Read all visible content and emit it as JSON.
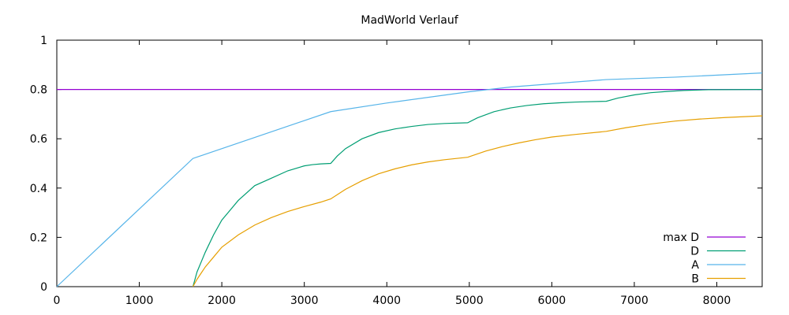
{
  "chart_data": {
    "type": "line",
    "title": "MadWorld Verlauf",
    "xlabel": "",
    "ylabel": "",
    "xlim": [
      0,
      8550
    ],
    "ylim": [
      0,
      1
    ],
    "x_ticks": [
      0,
      1000,
      2000,
      3000,
      4000,
      5000,
      6000,
      7000,
      8000
    ],
    "y_ticks": [
      0,
      0.2,
      0.4,
      0.6,
      0.8,
      1
    ],
    "y_tick_labels": [
      "0",
      "0.2",
      "0.4",
      "0.6",
      "0.8",
      "1"
    ],
    "grid": false,
    "legend_position": "bottom-right",
    "series": [
      {
        "name": "max D",
        "color": "#9400d3",
        "x": [
          0,
          8550
        ],
        "y": [
          0.8,
          0.8
        ]
      },
      {
        "name": "D",
        "color": "#009e73",
        "x": [
          1650,
          1700,
          1750,
          1800,
          1900,
          2000,
          2100,
          2200,
          2400,
          2600,
          2800,
          3000,
          3100,
          3200,
          3320,
          3400,
          3500,
          3700,
          3900,
          4100,
          4300,
          4500,
          4700,
          4980,
          5100,
          5300,
          5500,
          5700,
          5900,
          6100,
          6300,
          6660,
          6800,
          7000,
          7200,
          7400,
          7600,
          7900,
          8550
        ],
        "y": [
          0.0,
          0.06,
          0.1,
          0.14,
          0.21,
          0.27,
          0.31,
          0.35,
          0.41,
          0.44,
          0.47,
          0.49,
          0.495,
          0.498,
          0.5,
          0.53,
          0.56,
          0.6,
          0.625,
          0.64,
          0.65,
          0.658,
          0.662,
          0.665,
          0.685,
          0.71,
          0.725,
          0.735,
          0.742,
          0.746,
          0.749,
          0.752,
          0.765,
          0.778,
          0.787,
          0.792,
          0.796,
          0.799,
          0.8
        ]
      },
      {
        "name": "A",
        "color": "#56b4e9",
        "x": [
          0,
          1650,
          3320,
          4000,
          4980,
          5500,
          6660,
          7500,
          8550
        ],
        "y": [
          0.0,
          0.52,
          0.71,
          0.745,
          0.79,
          0.81,
          0.84,
          0.85,
          0.867
        ]
      },
      {
        "name": "B",
        "color": "#e69f00",
        "x": [
          1650,
          1700,
          1800,
          1900,
          2000,
          2200,
          2400,
          2600,
          2800,
          3000,
          3200,
          3320,
          3500,
          3700,
          3900,
          4100,
          4300,
          4500,
          4700,
          4980,
          5200,
          5400,
          5600,
          5800,
          6000,
          6300,
          6660,
          6900,
          7200,
          7500,
          7800,
          8100,
          8550
        ],
        "y": [
          0.0,
          0.03,
          0.08,
          0.12,
          0.16,
          0.21,
          0.25,
          0.28,
          0.305,
          0.325,
          0.343,
          0.356,
          0.395,
          0.43,
          0.458,
          0.478,
          0.494,
          0.506,
          0.515,
          0.525,
          0.55,
          0.568,
          0.583,
          0.596,
          0.607,
          0.618,
          0.63,
          0.645,
          0.66,
          0.672,
          0.68,
          0.686,
          0.693
        ]
      }
    ]
  }
}
